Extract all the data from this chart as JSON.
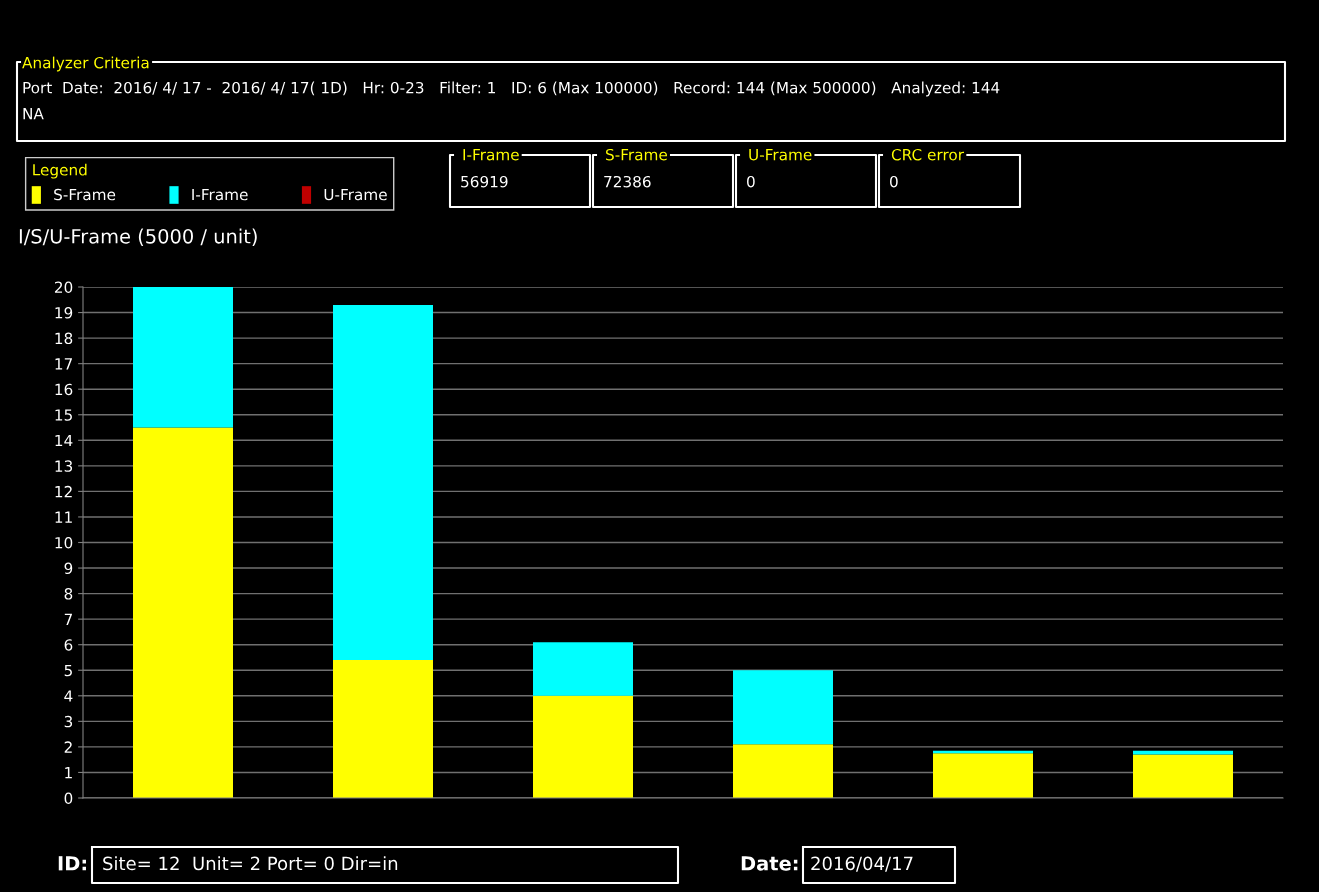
{
  "chart_data": {
    "type": "bar",
    "title": "I/S/U-Frame (5000 / unit)",
    "stacked": true,
    "categories": [
      null,
      null,
      null,
      null,
      null,
      null
    ],
    "series": [
      {
        "name": "S-Frame",
        "color": "#ffff00",
        "values": [
          14.5,
          5.4,
          4.0,
          2.1,
          1.75,
          1.7
        ]
      },
      {
        "name": "I-Frame",
        "color": "#00ffff",
        "values": [
          5.5,
          13.9,
          2.1,
          2.9,
          0.1,
          0.15
        ]
      },
      {
        "name": "U-Frame",
        "color": "#c00000",
        "values": [
          0,
          0,
          0,
          0,
          0,
          0
        ]
      }
    ],
    "ylim": [
      0,
      20
    ],
    "yticks": [
      0,
      1,
      2,
      3,
      4,
      5,
      6,
      7,
      8,
      9,
      10,
      11,
      12,
      13,
      14,
      15,
      16,
      17,
      18,
      19,
      20
    ],
    "grid": "y",
    "legend": "top left",
    "legend_title": "Legend",
    "annotations": [
      "Analyzer Criteria",
      "Port  Date:  2016/ 4/ 17 -  2016/ 4/ 17( 1D)   Hr: 0-23   Filter: 1   ID: 6 (Max 100000)   Record: 144 (Max 500000)   Analyzed: 144",
      "NA",
      "I-Frame",
      "56919",
      "S-Frame",
      "72386",
      "U-Frame",
      "0",
      "CRC error",
      "0",
      "ID:",
      "Site= 12  Unit= 2 Port= 0 Dir=in",
      "Date:",
      "2016/04/17"
    ]
  }
}
